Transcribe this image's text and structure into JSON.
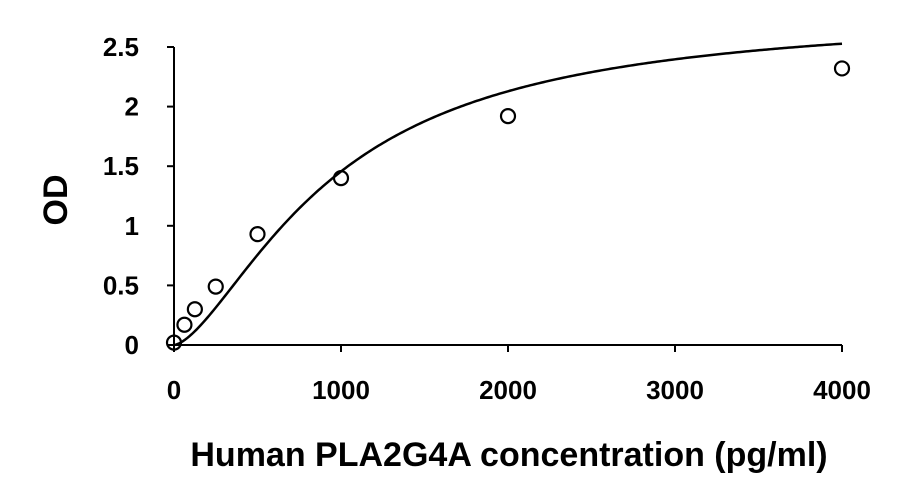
{
  "chart_data": {
    "type": "scatter",
    "xlabel": "Human PLA2G4A concentration (pg/ml)",
    "ylabel": "OD",
    "xlim": [
      0,
      4000
    ],
    "ylim": [
      0,
      2.5
    ],
    "xticks": [
      0,
      1000,
      2000,
      3000,
      4000
    ],
    "xtick_labels": [
      "0",
      "1000",
      "2000",
      "3000",
      "4000"
    ],
    "yticks": [
      0,
      0.5,
      1,
      1.5,
      2,
      2.5
    ],
    "ytick_labels": [
      "0",
      "0.5",
      "1",
      "1.5",
      "2",
      "2.5"
    ],
    "grid": false,
    "series": [
      {
        "marker": "open-circle",
        "x": [
          0,
          62.5,
          125,
          250,
          500,
          1000,
          2000,
          4000
        ],
        "y": [
          0.02,
          0.17,
          0.3,
          0.49,
          0.93,
          1.4,
          1.92,
          2.32
        ]
      }
    ],
    "fit": {
      "type": "4PL",
      "a": 0.0,
      "d": 2.8,
      "c": 950,
      "b": 1.55
    }
  }
}
